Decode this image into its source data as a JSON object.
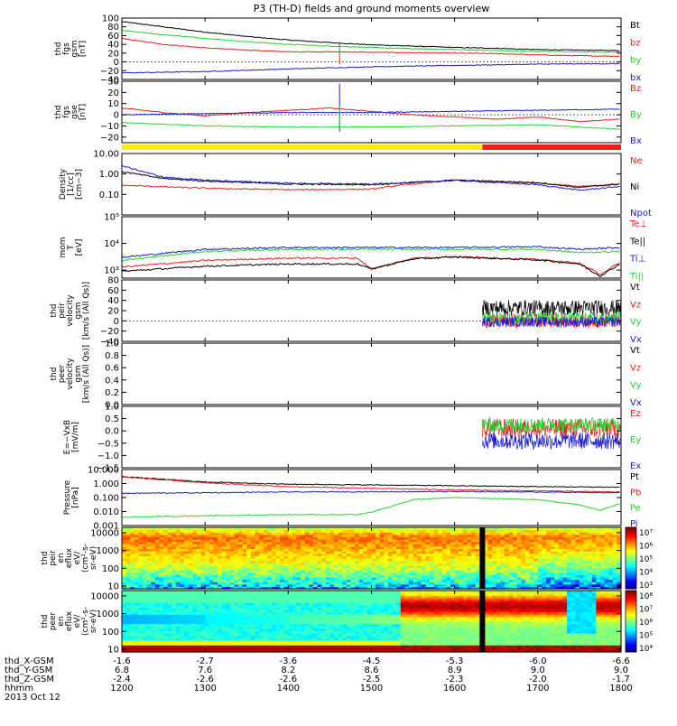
{
  "title": "P3 (TH-D) fields and ground moments overview",
  "colors": {
    "black": "#000000",
    "red": "#e8201a",
    "green": "#22d42a",
    "blue": "#1a1ad0",
    "yellow": "#ffee00"
  },
  "time_axis": {
    "range_hhmm": [
      1200,
      1800
    ],
    "rows": [
      {
        "label": "thd_X-GSM",
        "values": [
          "-1.6",
          "-2.7",
          "-3.6",
          "-4.5",
          "-5.3",
          "-6.0",
          "-6.6"
        ]
      },
      {
        "label": "thd_Y-GSM",
        "values": [
          "6.8",
          "7.6",
          "8.2",
          "8.6",
          "8.9",
          "9.0",
          "9.0"
        ]
      },
      {
        "label": "thd_Z-GSM",
        "values": [
          "-2.4",
          "-2.6",
          "-2.6",
          "-2.5",
          "-2.3",
          "-2.0",
          "-1.7"
        ]
      },
      {
        "label": "hhmm",
        "values": [
          "1200",
          "1300",
          "1400",
          "1500",
          "1600",
          "1700",
          "1800"
        ]
      }
    ],
    "date": "2013 Oct 12"
  },
  "chart_data": [
    {
      "id": "fgs_gsm",
      "type": "line",
      "ylabel": [
        "thd",
        "fgs",
        "gsm",
        "[nT]"
      ],
      "ylim": [
        -40,
        100
      ],
      "yticks": [
        100,
        80,
        60,
        40,
        20,
        0,
        -20,
        -40
      ],
      "ytick_labels": [
        "100",
        "80",
        "60",
        "40",
        "20",
        "0",
        "−20",
        "−40"
      ],
      "zero_line": true,
      "series": [
        {
          "name": "Bt",
          "color": "black",
          "x": [
            1200,
            1230,
            1300,
            1330,
            1400,
            1430,
            1500,
            1530,
            1600,
            1630,
            1700,
            1730,
            1800
          ],
          "y": [
            92,
            80,
            68,
            58,
            50,
            44,
            39,
            36,
            33,
            31,
            28,
            27,
            26
          ]
        },
        {
          "name": "bz",
          "color": "red",
          "x": [
            1200,
            1230,
            1300,
            1330,
            1400,
            1430,
            1500,
            1530,
            1600,
            1630,
            1700,
            1730,
            1800
          ],
          "y": [
            54,
            40,
            32,
            27,
            23,
            23,
            22,
            21,
            20,
            19,
            16,
            14,
            13
          ]
        },
        {
          "name": "by",
          "color": "green",
          "x": [
            1200,
            1230,
            1300,
            1330,
            1400,
            1430,
            1500,
            1530,
            1600,
            1630,
            1700,
            1730,
            1800
          ],
          "y": [
            72,
            62,
            54,
            46,
            40,
            36,
            33,
            30,
            28,
            26,
            24,
            23,
            22
          ]
        },
        {
          "name": "bx",
          "color": "blue",
          "x": [
            1200,
            1300,
            1400,
            1500,
            1600,
            1700,
            1800
          ],
          "y": [
            -25,
            -22,
            -16,
            -11,
            -8,
            -5,
            -4
          ]
        }
      ]
    },
    {
      "id": "fgs_gse",
      "type": "line",
      "ylabel": [
        "thd",
        "fgs",
        "gse",
        "[nT]"
      ],
      "ylim": [
        -25,
        30
      ],
      "yticks": [
        30,
        20,
        10,
        0,
        -10,
        -20
      ],
      "ytick_labels": [
        "30",
        "20",
        "10",
        "0",
        "−10",
        "−20"
      ],
      "zero_line": true,
      "series": [
        {
          "name": "Bz",
          "color": "red",
          "x": [
            1200,
            1230,
            1300,
            1330,
            1400,
            1430,
            1500,
            1530,
            1600,
            1630,
            1700,
            1730,
            1800
          ],
          "y": [
            6,
            2,
            -1,
            2,
            4,
            6,
            3,
            0,
            -2,
            -4,
            -2,
            -6,
            -4
          ]
        },
        {
          "name": "By",
          "color": "green",
          "x": [
            1200,
            1300,
            1400,
            1500,
            1600,
            1700,
            1800
          ],
          "y": [
            -7,
            -10,
            -11,
            -11,
            -10,
            -9,
            -13
          ]
        },
        {
          "name": "Bx",
          "color": "blue",
          "x": [
            1200,
            1300,
            1400,
            1500,
            1600,
            1700,
            1800
          ],
          "y": [
            0,
            1,
            2,
            2,
            3,
            4,
            5
          ]
        }
      ]
    },
    {
      "id": "density",
      "type": "line",
      "yscale": "log",
      "ylabel": [
        "Density",
        "[1/cc]",
        "[cm−3]"
      ],
      "ylim": [
        0.01,
        10
      ],
      "yticks": [
        10,
        1,
        0.1
      ],
      "ytick_labels": [
        "10.00",
        "1.00",
        "0.10"
      ],
      "series": [
        {
          "name": "Ne",
          "color": "red",
          "x": [
            1200,
            1300,
            1400,
            1500,
            1520,
            1600,
            1700,
            1730,
            1800
          ],
          "y": [
            0.28,
            0.2,
            0.17,
            0.18,
            0.28,
            0.5,
            0.36,
            0.25,
            0.32
          ]
        },
        {
          "name": "Ni",
          "color": "black",
          "x": [
            1200,
            1230,
            1300,
            1400,
            1500,
            1600,
            1700,
            1730,
            1800
          ],
          "y": [
            1.3,
            0.6,
            0.45,
            0.32,
            0.3,
            0.5,
            0.38,
            0.22,
            0.33
          ]
        },
        {
          "name": "Npot",
          "color": "blue",
          "x": [
            1200,
            1230,
            1300,
            1400,
            1500,
            1600,
            1700,
            1730,
            1800
          ],
          "y": [
            2.5,
            0.7,
            0.5,
            0.35,
            0.32,
            0.48,
            0.3,
            0.16,
            0.25
          ]
        }
      ]
    },
    {
      "id": "temperature",
      "type": "line",
      "yscale": "log",
      "ylabel": [
        "mom",
        "T",
        "[eV]"
      ],
      "ylim": [
        500,
        100000
      ],
      "yticks": [
        100000,
        10000,
        1000
      ],
      "ytick_labels": [
        "10⁵",
        "10⁴",
        "10³"
      ],
      "series": [
        {
          "name": "Te⊥",
          "color": "red",
          "x": [
            1200,
            1300,
            1400,
            1450,
            1500,
            1530,
            1600,
            1700,
            1730,
            1745,
            1800
          ],
          "y": [
            1300,
            2300,
            2800,
            2800,
            1100,
            2800,
            3200,
            2500,
            1800,
            700,
            2000
          ]
        },
        {
          "name": "Te||",
          "color": "black",
          "x": [
            1200,
            1300,
            1400,
            1450,
            1500,
            1530,
            1600,
            1700,
            1730,
            1745,
            1800
          ],
          "y": [
            900,
            1400,
            1700,
            1700,
            1100,
            2600,
            3100,
            2400,
            1700,
            600,
            1800
          ]
        },
        {
          "name": "Ti⊥",
          "color": "blue",
          "x": [
            1200,
            1300,
            1400,
            1500,
            1600,
            1700,
            1730,
            1800
          ],
          "y": [
            3000,
            6000,
            7000,
            7000,
            7000,
            7500,
            6000,
            7000
          ]
        },
        {
          "name": "Ti||",
          "color": "green",
          "x": [
            1200,
            1300,
            1400,
            1500,
            1600,
            1700,
            1730,
            1800
          ],
          "y": [
            2300,
            5000,
            6000,
            6000,
            6000,
            6000,
            4500,
            5000
          ]
        }
      ]
    },
    {
      "id": "peir_velocity",
      "type": "line",
      "ylabel": [
        "thd",
        "peir",
        "velocity",
        "gsm",
        "[km/s (All Qs)]"
      ],
      "ylim": [
        -40,
        80
      ],
      "yticks": [
        80,
        60,
        40,
        20,
        0,
        -20,
        -40
      ],
      "ytick_labels": [
        "80",
        "60",
        "40",
        "20",
        "0",
        "−20",
        "−40"
      ],
      "zero_line": true,
      "data_start": 1620,
      "noisy": true,
      "series": [
        {
          "name": "Vt",
          "color": "black",
          "mean": 25,
          "amp": 16
        },
        {
          "name": "Vz",
          "color": "red",
          "mean": 0,
          "amp": 14
        },
        {
          "name": "Vy",
          "color": "green",
          "mean": 5,
          "amp": 12
        },
        {
          "name": "Vx",
          "color": "blue",
          "mean": -2,
          "amp": 10
        }
      ]
    },
    {
      "id": "peer_velocity",
      "type": "line",
      "ylabel": [
        "thd",
        "peer",
        "velocity",
        "gsm",
        "[km/s (All Qs)]"
      ],
      "ylim": [
        0,
        1
      ],
      "yticks": [
        1,
        0.8,
        0.6,
        0.4,
        0.2,
        0
      ],
      "ytick_labels": [
        "1.0",
        "0.8",
        "0.6",
        "0.4",
        "0.2",
        "0.0"
      ],
      "series": [
        {
          "name": "Vt",
          "color": "black"
        },
        {
          "name": "Vz",
          "color": "red"
        },
        {
          "name": "Vy",
          "color": "green"
        },
        {
          "name": "Vx",
          "color": "blue"
        }
      ]
    },
    {
      "id": "efield",
      "type": "line",
      "ylabel": [
        "E=−VxB",
        "[mV/m]"
      ],
      "ylim": [
        -1.5,
        1
      ],
      "yticks": [
        1,
        0.5,
        0,
        -0.5,
        -1,
        -1.5
      ],
      "ytick_labels": [
        "1.0",
        "0.5",
        "0.0",
        "−0.5",
        "−1.0",
        "−1.5"
      ],
      "data_start": 1620,
      "noisy": true,
      "series": [
        {
          "name": "Ez",
          "color": "red",
          "mean": 0.1,
          "amp": 0.4
        },
        {
          "name": "Ey",
          "color": "green",
          "mean": 0.25,
          "amp": 0.3
        },
        {
          "name": "Ex",
          "color": "blue",
          "mean": -0.4,
          "amp": 0.35
        }
      ]
    },
    {
      "id": "pressure",
      "type": "line",
      "yscale": "log",
      "ylabel": [
        "Pressure",
        "[nPa]"
      ],
      "ylim": [
        0.001,
        10
      ],
      "yticks": [
        10,
        1,
        0.1,
        0.01,
        0.001
      ],
      "ytick_labels": [
        "10.000",
        "1.000",
        "0.100",
        "0.010",
        "0.001"
      ],
      "series": [
        {
          "name": "Pt",
          "color": "black",
          "x": [
            1200,
            1230,
            1300,
            1400,
            1500,
            1600,
            1700,
            1800
          ],
          "y": [
            3.2,
            2.0,
            1.3,
            0.9,
            0.8,
            0.7,
            0.6,
            0.55
          ]
        },
        {
          "name": "Pb",
          "color": "red",
          "x": [
            1200,
            1230,
            1300,
            1400,
            1500,
            1600,
            1700,
            1800
          ],
          "y": [
            3.0,
            1.8,
            1.1,
            0.6,
            0.45,
            0.35,
            0.3,
            0.25
          ]
        },
        {
          "name": "Pe",
          "color": "green",
          "x": [
            1200,
            1300,
            1400,
            1450,
            1500,
            1530,
            1600,
            1700,
            1730,
            1745,
            1800
          ],
          "y": [
            0.004,
            0.005,
            0.006,
            0.006,
            0.009,
            0.07,
            0.1,
            0.07,
            0.03,
            0.012,
            0.04
          ]
        },
        {
          "name": "Pi",
          "color": "blue",
          "x": [
            1200,
            1300,
            1400,
            1500,
            1600,
            1700,
            1800
          ],
          "y": [
            0.2,
            0.22,
            0.25,
            0.26,
            0.27,
            0.25,
            0.22
          ]
        }
      ]
    },
    {
      "id": "peir_eflux",
      "type": "heatmap",
      "yscale": "log",
      "ylabel": [
        "thd",
        "peir",
        "en",
        "eflux",
        "eV/",
        "(cm²-s-",
        "sr-eV)"
      ],
      "ylim": [
        7,
        20000
      ],
      "yticks": [
        10000,
        1000,
        100,
        10
      ],
      "ytick_labels": [
        "10000",
        "1000",
        "100",
        "10"
      ],
      "colorbar": {
        "labels": [
          "10⁷",
          "10⁶",
          "10⁵",
          "10⁴",
          "10³"
        ]
      },
      "profile": "ion"
    },
    {
      "id": "peer_eflux",
      "type": "heatmap",
      "yscale": "log",
      "ylabel": [
        "thd",
        "peer",
        "en",
        "eflux",
        "eV/",
        "(cm²-s-",
        "sr-eV)"
      ],
      "ylim": [
        7,
        20000
      ],
      "yticks": [
        10000,
        1000,
        100,
        10
      ],
      "ytick_labels": [
        "10000",
        "1000",
        "100",
        "10"
      ],
      "colorbar": {
        "labels": [
          "10⁸",
          "10⁷",
          "10⁶",
          "10⁵",
          "10⁴"
        ]
      },
      "profile": "electron"
    }
  ],
  "mode_bar": {
    "segments": [
      {
        "x0": 1200,
        "x1": 1620,
        "color": "yellow"
      },
      {
        "x0": 1620,
        "x1": 1800,
        "color": "red"
      }
    ]
  }
}
